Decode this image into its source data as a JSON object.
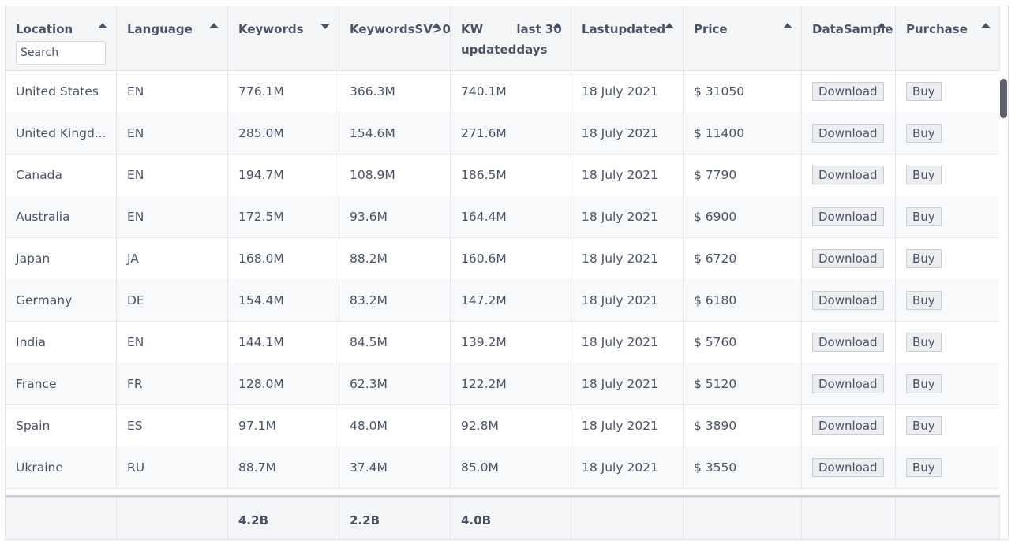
{
  "search": {
    "placeholder": "Search"
  },
  "columns": [
    {
      "label": "Location",
      "sort": "asc"
    },
    {
      "label": "Language",
      "sort": "asc"
    },
    {
      "label": "Keywords",
      "sort": "desc"
    },
    {
      "label": "Keywords SV>0",
      "sort": "asc"
    },
    {
      "label": "KW updated last 30 days",
      "sort": "asc"
    },
    {
      "label": "Last updated",
      "sort": "asc"
    },
    {
      "label": "Price",
      "sort": "asc"
    },
    {
      "label": "Data Sample",
      "sort": "asc"
    },
    {
      "label": "Purchase",
      "sort": "asc"
    }
  ],
  "header_lines": [
    [
      "Location"
    ],
    [
      "Language"
    ],
    [
      "Keywords"
    ],
    [
      "Keywords",
      "SV>0"
    ],
    [
      "KW updated",
      "last 30 days"
    ],
    [
      "Last",
      "updated"
    ],
    [
      "Price"
    ],
    [
      "Data",
      "Sample"
    ],
    [
      "Purchase"
    ]
  ],
  "rows": [
    {
      "location": "United States",
      "language": "EN",
      "keywords": "776.1M",
      "sv": "366.3M",
      "kw30": "740.1M",
      "updated": "18 July 2021",
      "price": "$ 31050"
    },
    {
      "location": "United Kingd...",
      "language": "EN",
      "keywords": "285.0M",
      "sv": "154.6M",
      "kw30": "271.6M",
      "updated": "18 July 2021",
      "price": "$ 11400"
    },
    {
      "location": "Canada",
      "language": "EN",
      "keywords": "194.7M",
      "sv": "108.9M",
      "kw30": "186.5M",
      "updated": "18 July 2021",
      "price": "$ 7790"
    },
    {
      "location": "Australia",
      "language": "EN",
      "keywords": "172.5M",
      "sv": "93.6M",
      "kw30": "164.4M",
      "updated": "18 July 2021",
      "price": "$ 6900"
    },
    {
      "location": "Japan",
      "language": "JA",
      "keywords": "168.0M",
      "sv": "88.2M",
      "kw30": "160.6M",
      "updated": "18 July 2021",
      "price": "$ 6720"
    },
    {
      "location": "Germany",
      "language": "DE",
      "keywords": "154.4M",
      "sv": "83.2M",
      "kw30": "147.2M",
      "updated": "18 July 2021",
      "price": "$ 6180"
    },
    {
      "location": "India",
      "language": "EN",
      "keywords": "144.1M",
      "sv": "84.5M",
      "kw30": "139.2M",
      "updated": "18 July 2021",
      "price": "$ 5760"
    },
    {
      "location": "France",
      "language": "FR",
      "keywords": "128.0M",
      "sv": "62.3M",
      "kw30": "122.2M",
      "updated": "18 July 2021",
      "price": "$ 5120"
    },
    {
      "location": "Spain",
      "language": "ES",
      "keywords": "97.1M",
      "sv": "48.0M",
      "kw30": "92.8M",
      "updated": "18 July 2021",
      "price": "$ 3890"
    },
    {
      "location": "Ukraine",
      "language": "RU",
      "keywords": "88.7M",
      "sv": "37.4M",
      "kw30": "85.0M",
      "updated": "18 July 2021",
      "price": "$ 3550"
    }
  ],
  "buttons": {
    "download": "Download",
    "buy": "Buy"
  },
  "footer": {
    "keywords": "4.2B",
    "sv": "2.2B",
    "kw30": "4.0B"
  },
  "colors": {
    "header_bg": "#f5f6f8",
    "text": "#4a5266",
    "border": "#dfe2e8"
  }
}
